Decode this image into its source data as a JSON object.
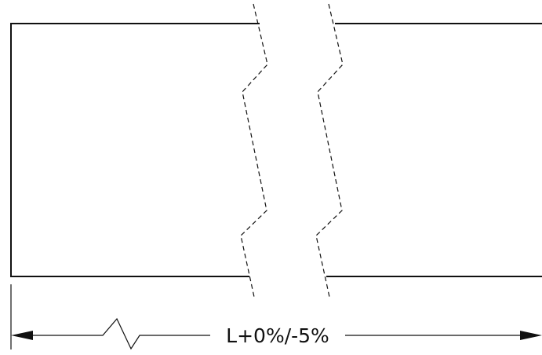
{
  "dimension": {
    "label": "L+0%/-5%"
  },
  "colors": {
    "line": "#111111",
    "background": "#ffffff"
  }
}
